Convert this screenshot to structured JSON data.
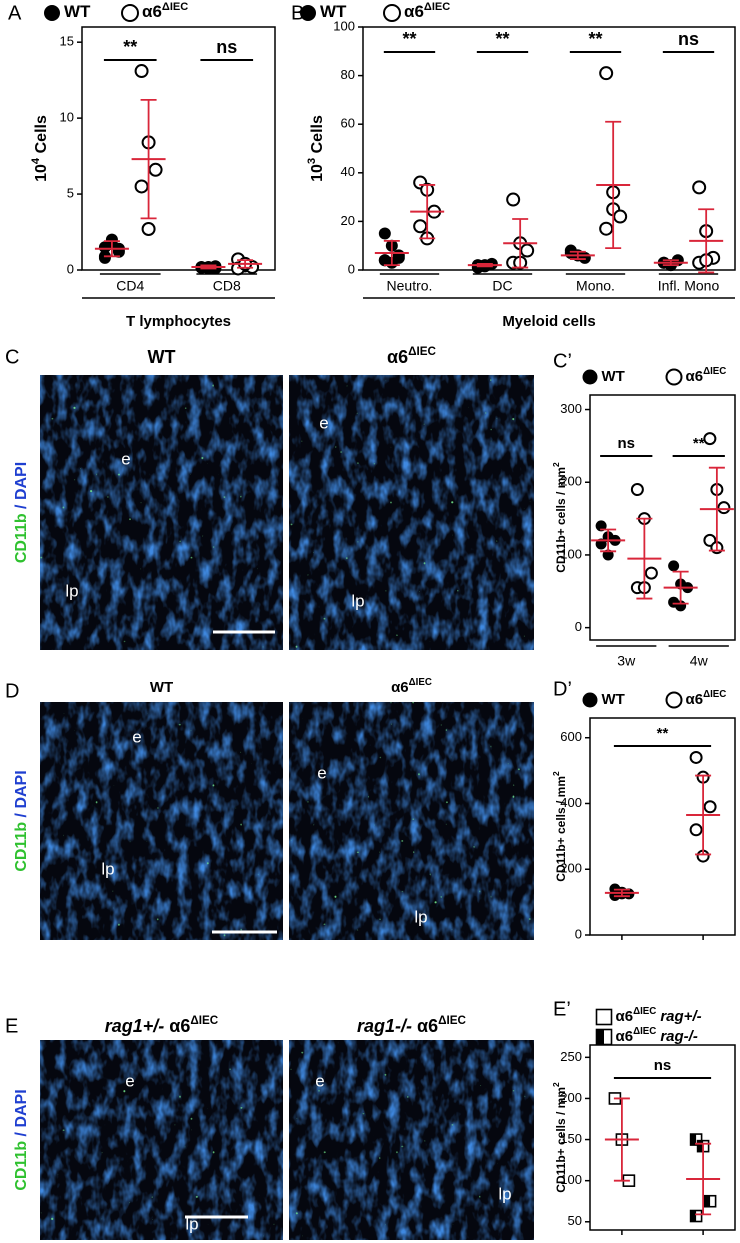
{
  "chart_data": [
    {
      "type": "strip",
      "panel": "A",
      "ylabel": {
        "base": "10",
        "exponent": "4",
        "text": " Cells"
      },
      "ylim": [
        0,
        16
      ],
      "yticks": [
        0,
        5,
        10,
        15
      ],
      "categories": [
        "CD4",
        "CD8"
      ],
      "group": "T lymphocytes",
      "error_color": "#d9263a",
      "series": [
        {
          "name": "WT",
          "marker": "filled-circle",
          "color": "#000000",
          "values": [
            [
              1.5,
              2.0,
              1.2,
              0.8,
              1.7,
              1.4,
              0.9
            ],
            [
              0.2,
              0.1,
              0.25,
              0.15,
              0.2,
              0.1
            ]
          ],
          "means": [
            1.4,
            0.2
          ],
          "errors": [
            0.5,
            0.1
          ]
        },
        {
          "name": "α6",
          "name_superscript": "ΔIEC",
          "marker": "open-circle",
          "color": "#000000",
          "values": [
            [
              13.1,
              8.4,
              6.6,
              5.5,
              2.7
            ],
            [
              0.7,
              0.3,
              0.2,
              0.1,
              0.4
            ]
          ],
          "means": [
            7.3,
            0.4
          ],
          "errors": [
            3.9,
            0.25
          ]
        }
      ],
      "annotations": [
        {
          "text": "**",
          "category": 0
        },
        {
          "text": "ns",
          "category": 1
        }
      ]
    },
    {
      "type": "strip",
      "panel": "B",
      "ylabel": {
        "base": "10",
        "exponent": "3",
        "text": " Cells"
      },
      "ylim": [
        0,
        100
      ],
      "yticks": [
        0,
        20,
        40,
        60,
        80,
        100
      ],
      "categories": [
        "Neutro.",
        "DC",
        "Mono.",
        "Infl. Mono"
      ],
      "group": "Myeloid cells",
      "error_color": "#d9263a",
      "series": [
        {
          "name": "WT",
          "marker": "filled-circle",
          "color": "#000000",
          "values": [
            [
              15,
              10,
              6,
              4,
              3,
              5,
              4
            ],
            [
              2,
              1.5,
              2.5,
              1,
              2
            ],
            [
              8,
              6,
              5,
              7,
              6
            ],
            [
              3,
              2,
              4,
              3,
              2
            ]
          ],
          "means": [
            7,
            2,
            6,
            3
          ],
          "errors": [
            5,
            0.5,
            1.5,
            1
          ]
        },
        {
          "name": "α6",
          "name_superscript": "ΔIEC",
          "marker": "open-circle",
          "color": "#000000",
          "values": [
            [
              36,
              33,
              24,
              18,
              13
            ],
            [
              29,
              11,
              8,
              3,
              3
            ],
            [
              81,
              25,
              22,
              17,
              32
            ],
            [
              34,
              16,
              5,
              3,
              4
            ]
          ],
          "means": [
            24,
            11,
            35,
            12
          ],
          "errors": [
            11,
            10,
            26,
            13
          ]
        }
      ],
      "annotations": [
        {
          "text": "**",
          "category": 0
        },
        {
          "text": "**",
          "category": 1
        },
        {
          "text": "**",
          "category": 2
        },
        {
          "text": "ns",
          "category": 3
        }
      ]
    },
    {
      "type": "strip",
      "panel": "C’",
      "ylabel": {
        "text": "CD11b+ cells / mm",
        "exponent": "2"
      },
      "ylim": [
        -17,
        320
      ],
      "yticks": [
        0,
        100,
        200,
        300
      ],
      "categories": [
        "3w",
        "4w"
      ],
      "error_color": "#d9263a",
      "series": [
        {
          "name": "WT",
          "marker": "filled-circle",
          "color": "#000000",
          "values": [
            [
              140,
              125,
              120,
              115,
              100
            ],
            [
              85,
              60,
              55,
              35,
              30
            ]
          ],
          "means": [
            120,
            55
          ],
          "errors": [
            15,
            22
          ]
        },
        {
          "name": "α6",
          "name_superscript": "ΔIEC",
          "marker": "open-circle",
          "color": "#000000",
          "values": [
            [
              190,
              150,
              75,
              55,
              55
            ],
            [
              260,
              190,
              165,
              120,
              110
            ]
          ],
          "means": [
            95,
            163
          ],
          "errors": [
            55,
            57
          ]
        }
      ],
      "annotations": [
        {
          "text": "ns",
          "category": 0
        },
        {
          "text": "**",
          "category": 1
        }
      ]
    },
    {
      "type": "strip",
      "panel": "D’",
      "ylabel": {
        "text": "CD11b+ cells / mm",
        "exponent": "2"
      },
      "ylim": [
        0,
        660
      ],
      "yticks": [
        0,
        200,
        400,
        600
      ],
      "categories": [
        null
      ],
      "error_color": "#d9263a",
      "series": [
        {
          "name": "WT",
          "marker": "filled-circle",
          "color": "#000000",
          "values": [
            [
              140,
              130,
              125,
              120,
              125
            ]
          ],
          "means": [
            128
          ],
          "errors": [
            10
          ]
        },
        {
          "name": "α6",
          "name_superscript": "ΔIEC",
          "marker": "open-circle",
          "color": "#000000",
          "values": [
            [
              540,
              480,
              390,
              320,
              240
            ]
          ],
          "means": [
            365
          ],
          "errors": [
            120
          ]
        }
      ],
      "annotations": [
        {
          "text": "**",
          "category": 0
        }
      ]
    },
    {
      "type": "strip",
      "panel": "E’",
      "ylabel": {
        "text": "CD11b+ cells / mm",
        "exponent": "2"
      },
      "ylim": [
        40,
        265
      ],
      "yticks": [
        50,
        100,
        150,
        200,
        250
      ],
      "categories": [
        null
      ],
      "error_color": "#d9263a",
      "series": [
        {
          "name": "α6",
          "name_superscript": "ΔIEC",
          "name_suffix": "rag+/-",
          "marker": "open-square",
          "color": "#000000",
          "values": [
            [
              200,
              150,
              100
            ]
          ],
          "means": [
            150
          ],
          "errors": [
            50
          ]
        },
        {
          "name": "α6",
          "name_superscript": "ΔIEC",
          "name_suffix": "rag-/-",
          "marker": "half-square",
          "color": "#000000",
          "values": [
            [
              150,
              142,
              75,
              57
            ]
          ],
          "means": [
            102
          ],
          "errors": [
            43
          ]
        }
      ],
      "annotations": [
        {
          "text": "ns",
          "category": 0
        }
      ]
    }
  ],
  "micrographs": [
    {
      "panel": "C",
      "stain": [
        "CD11b",
        " / DAPI"
      ],
      "images": [
        {
          "title": "WT",
          "labels": [
            "e",
            "lp"
          ]
        },
        {
          "title": "α6",
          "title_superscript": "ΔIEC",
          "labels": [
            "e",
            "lp"
          ]
        }
      ]
    },
    {
      "panel": "D",
      "stain": [
        "CD11b",
        " / DAPI"
      ],
      "images": [
        {
          "title": "WT",
          "labels": [
            "e",
            "lp"
          ]
        },
        {
          "title": "α6",
          "title_superscript": "ΔIEC",
          "labels": [
            "e",
            "lp"
          ]
        }
      ]
    },
    {
      "panel": "E",
      "stain": [
        "CD11b",
        " / DAPI"
      ],
      "images": [
        {
          "title_prefix": "rag1+/-",
          "title": " α6",
          "title_superscript": "ΔIEC",
          "labels": [
            "e",
            "lp"
          ]
        },
        {
          "title_prefix": "rag1-/-",
          "title": " α6",
          "title_superscript": "ΔIEC",
          "labels": [
            "e",
            "lp"
          ]
        }
      ]
    }
  ]
}
